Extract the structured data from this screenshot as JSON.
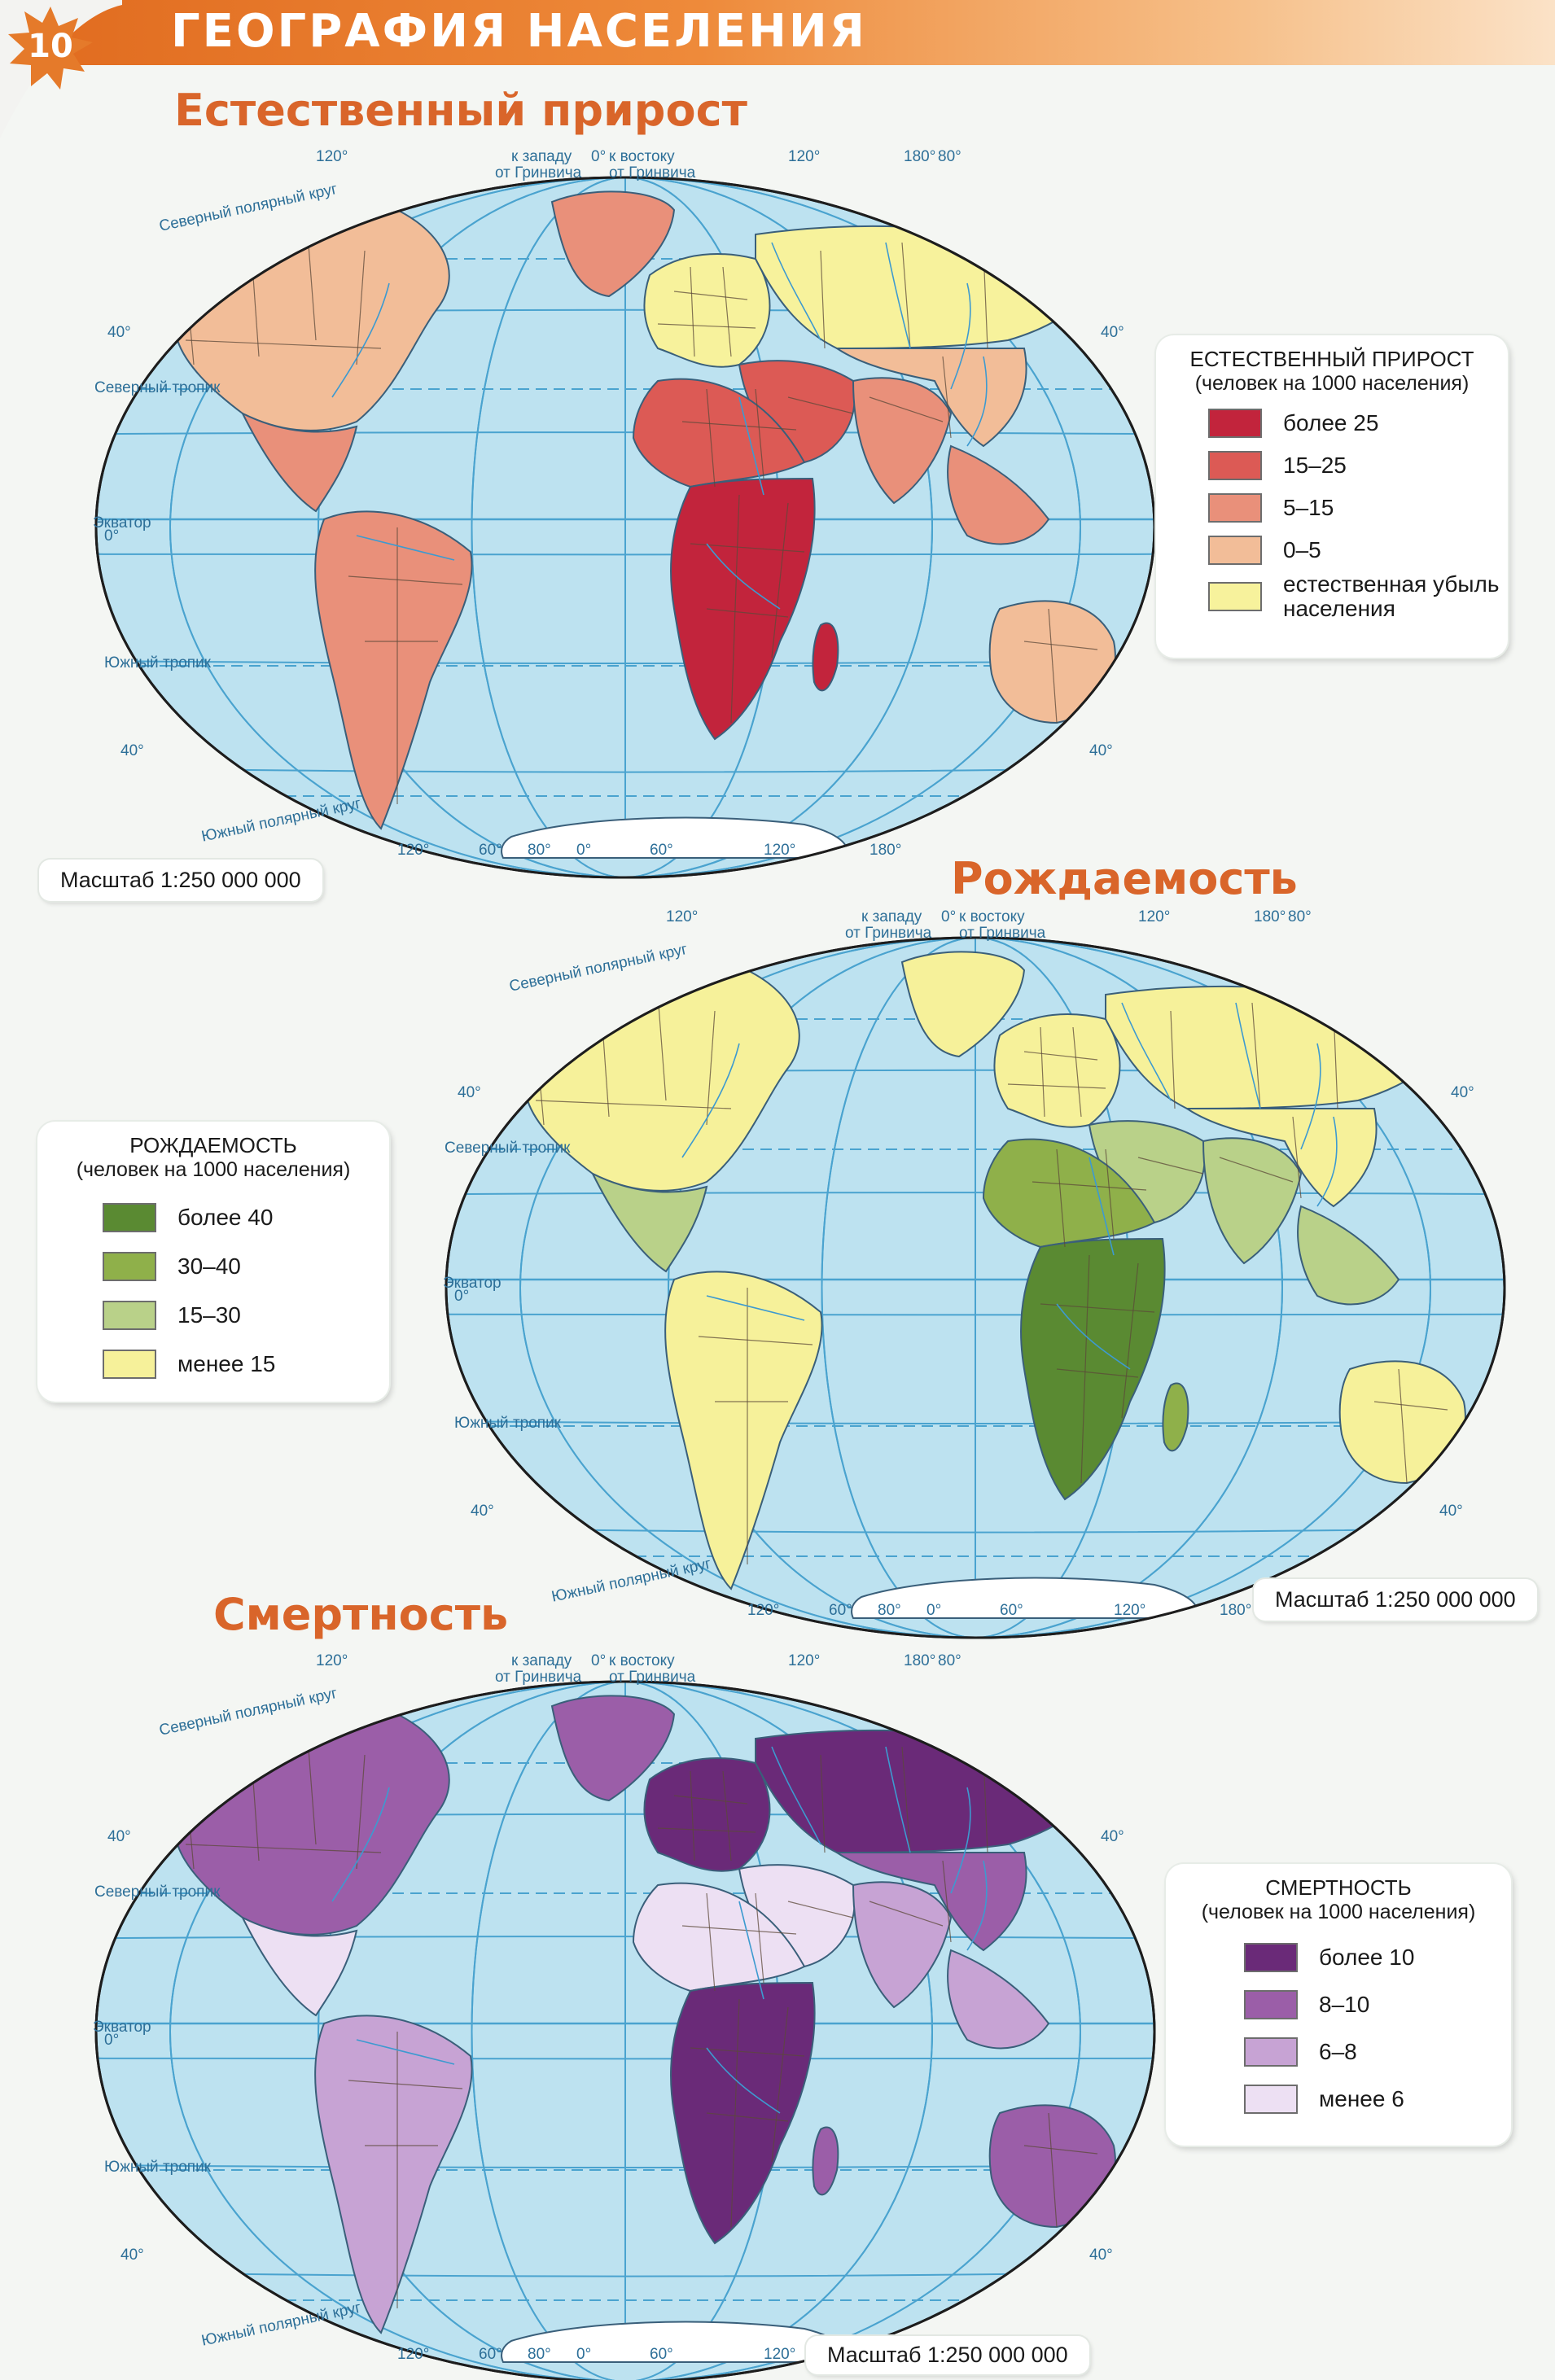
{
  "header": {
    "page_number": "10",
    "title": "ГЕОГРАФИЯ НАСЕЛЕНИЯ"
  },
  "map_labels": {
    "lon_120w": "120°",
    "west_of_greenwich": "к западу",
    "from_greenwich_w": "от Гринвича",
    "zero_deg": "0°",
    "east_of_greenwich": "к востоку",
    "from_greenwich_e": "от Гринвича",
    "lon_120e": "120°",
    "lon_180": "180°",
    "lat_80": "80°",
    "lat_40": "40°",
    "arctic_circle": "Северный полярный круг",
    "tropic_cancer": "Северный тропик",
    "equator": "Экватор",
    "eq_zero": "0°",
    "tropic_capricorn": "Южный тропик",
    "antarctic_circle": "Южный полярный круг",
    "bottom_lons": [
      "120°",
      "60°",
      "80°",
      "0°",
      "60°",
      "120°",
      "180°"
    ]
  },
  "maps": [
    {
      "id": "natural-increase",
      "title": "Естественный прирост",
      "scale": "Масштаб 1:250 000 000",
      "legend": {
        "title": "ЕСТЕСТВЕННЫЙ ПРИРОСТ",
        "subtitle": "(человек на 1000 населения)",
        "items": [
          {
            "label": "более 25",
            "color": "#c2243c"
          },
          {
            "label": "15–25",
            "color": "#dc5a55"
          },
          {
            "label": "5–15",
            "color": "#e9907a"
          },
          {
            "label": "0–5",
            "color": "#f2bd98"
          },
          {
            "label": "естественная убыль населения",
            "color": "#f7f29c"
          }
        ]
      },
      "regions": {
        "north_america": "#f2bd98",
        "central_america": "#e9907a",
        "south_america": "#e9907a",
        "greenland": "#e9907a",
        "europe": "#f7f29c",
        "russia": "#f7f29c",
        "middle_east": "#dc5a55",
        "south_asia": "#e9907a",
        "east_asia": "#f2bd98",
        "southeast_asia": "#e9907a",
        "africa_north": "#dc5a55",
        "africa_central": "#c2243c",
        "madagascar": "#c2243c",
        "australia": "#f2bd98",
        "new_zealand": "#e9907a",
        "antarctica": "#ffffff"
      }
    },
    {
      "id": "birth-rate",
      "title": "Рождаемость",
      "scale": "Масштаб 1:250 000 000",
      "legend": {
        "title": "РОЖДАЕМОСТЬ",
        "subtitle": "(человек на 1000 населения)",
        "items": [
          {
            "label": "более 40",
            "color": "#5a8a32"
          },
          {
            "label": "30–40",
            "color": "#8fb04a"
          },
          {
            "label": "15–30",
            "color": "#b9d189"
          },
          {
            "label": "менее 15",
            "color": "#f6f19a"
          }
        ]
      },
      "regions": {
        "north_america": "#f6f19a",
        "central_america": "#b9d189",
        "south_america": "#f6f19a",
        "greenland": "#f6f19a",
        "europe": "#f6f19a",
        "russia": "#f6f19a",
        "middle_east": "#b9d189",
        "south_asia": "#b9d189",
        "east_asia": "#f6f19a",
        "southeast_asia": "#b9d189",
        "africa_north": "#8fb04a",
        "africa_central": "#5a8a32",
        "madagascar": "#8fb04a",
        "australia": "#f6f19a",
        "new_zealand": "#f6f19a",
        "antarctica": "#ffffff"
      }
    },
    {
      "id": "mortality",
      "title": "Смертность",
      "scale": "Масштаб 1:250 000 000",
      "legend": {
        "title": "СМЕРТНОСТЬ",
        "subtitle": "(человек на 1000 населения)",
        "items": [
          {
            "label": "более 10",
            "color": "#6a2a78"
          },
          {
            "label": "8–10",
            "color": "#9b5ea8"
          },
          {
            "label": "6–8",
            "color": "#c7a3d4"
          },
          {
            "label": "менее 6",
            "color": "#ede0f3"
          }
        ]
      },
      "regions": {
        "north_america": "#9b5ea8",
        "central_america": "#ede0f3",
        "south_america": "#c7a3d4",
        "greenland": "#9b5ea8",
        "europe": "#6a2a78",
        "russia": "#6a2a78",
        "middle_east": "#ede0f3",
        "south_asia": "#c7a3d4",
        "east_asia": "#9b5ea8",
        "southeast_asia": "#c7a3d4",
        "africa_north": "#ede0f3",
        "africa_central": "#6a2a78",
        "madagascar": "#9b5ea8",
        "australia": "#9b5ea8",
        "new_zealand": "#c7a3d4",
        "antarctica": "#ffffff"
      }
    }
  ],
  "colors": {
    "ocean": "#bde2f0",
    "grid": "#4aa3cf",
    "border": "#5c4a3a",
    "accent": "#e06a1e",
    "title": "#d9652a"
  }
}
